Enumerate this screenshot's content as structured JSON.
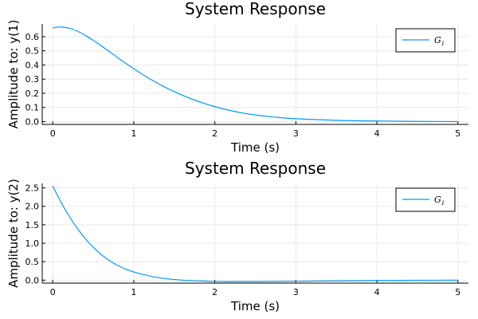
{
  "chart_data": [
    {
      "type": "line",
      "title": "System Response",
      "xlabel": "Time (s)",
      "ylabel": "Amplitude to: y(1)",
      "xlim": [
        -0.13,
        5.13
      ],
      "ylim": [
        -0.02,
        0.69
      ],
      "xticks": [
        0,
        1,
        2,
        3,
        4,
        5
      ],
      "yticks": [
        0.0,
        0.1,
        0.2,
        0.3,
        0.4,
        0.5,
        0.6
      ],
      "ytick_labels": [
        "0.0",
        "0.1",
        "0.2",
        "0.3",
        "0.4",
        "0.5",
        "0.6"
      ],
      "grid": true,
      "legend_placement": "top-right",
      "series": [
        {
          "name": "G",
          "name_subscript": "1",
          "color": "#009af9",
          "x": [
            0,
            0.05,
            0.1,
            0.2,
            0.3,
            0.4,
            0.5,
            0.6,
            0.7,
            0.8,
            0.9,
            1.0,
            1.2,
            1.4,
            1.6,
            1.8,
            2.0,
            2.25,
            2.5,
            2.75,
            3.0,
            3.5,
            4.0,
            4.5,
            5.0
          ],
          "y": [
            0.66,
            0.667,
            0.668,
            0.66,
            0.64,
            0.61,
            0.574,
            0.535,
            0.494,
            0.452,
            0.412,
            0.373,
            0.301,
            0.239,
            0.186,
            0.142,
            0.106,
            0.071,
            0.047,
            0.031,
            0.02,
            0.009,
            0.004,
            0.001,
            0.0
          ]
        }
      ]
    },
    {
      "type": "line",
      "title": "System Response",
      "xlabel": "Time (s)",
      "ylabel": "Amplitude to: y(2)",
      "xlim": [
        -0.13,
        5.13
      ],
      "ylim": [
        -0.08,
        2.62
      ],
      "xticks": [
        0,
        1,
        2,
        3,
        4,
        5
      ],
      "yticks": [
        0.0,
        0.5,
        1.0,
        1.5,
        2.0,
        2.5
      ],
      "ytick_labels": [
        "0.0",
        "0.5",
        "1.0",
        "1.5",
        "2.0",
        "2.5"
      ],
      "grid": true,
      "legend_placement": "top-right",
      "series": [
        {
          "name": "G",
          "name_subscript": "1",
          "color": "#009af9",
          "x": [
            0,
            0.1,
            0.2,
            0.3,
            0.4,
            0.5,
            0.6,
            0.7,
            0.8,
            0.9,
            1.0,
            1.2,
            1.4,
            1.6,
            1.8,
            2.0,
            2.2,
            2.5,
            3.0,
            3.5,
            4.0,
            4.5,
            5.0
          ],
          "y": [
            2.55,
            2.12,
            1.74,
            1.41,
            1.13,
            0.89,
            0.69,
            0.53,
            0.4,
            0.3,
            0.22,
            0.11,
            0.04,
            0.0,
            -0.02,
            -0.035,
            -0.04,
            -0.04,
            -0.03,
            -0.02,
            -0.01,
            -0.005,
            0.0
          ]
        }
      ]
    }
  ]
}
